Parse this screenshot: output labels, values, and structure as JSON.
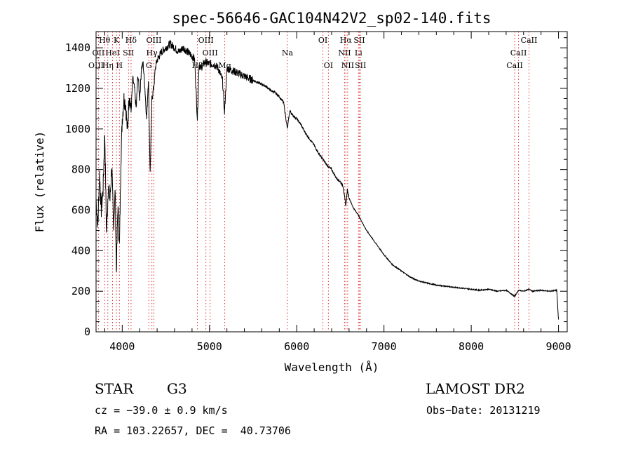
{
  "chart_data": {
    "type": "line",
    "title": "spec-56646-GAC104N42V2_sp02-140.fits",
    "xlabel": "Wavelength (Å)",
    "ylabel": "Flux (relative)",
    "xlim": [
      3700,
      9100
    ],
    "ylim": [
      0,
      1480
    ],
    "xticks": [
      "4000",
      "5000",
      "6000",
      "7000",
      "8000",
      "9000"
    ],
    "yticks": [
      "0",
      "200",
      "400",
      "600",
      "800",
      "1000",
      "1200",
      "1400"
    ],
    "grid": false,
    "series": [
      {
        "x": [
          3700,
          3720,
          3740,
          3760,
          3780,
          3800,
          3820,
          3840,
          3860,
          3880,
          3900,
          3920,
          3933,
          3950,
          3968,
          3985,
          4000,
          4020,
          4040,
          4060,
          4080,
          4101,
          4120,
          4140,
          4160,
          4180,
          4200,
          4220,
          4240,
          4260,
          4280,
          4300,
          4320,
          4340,
          4360,
          4380,
          4400,
          4450,
          4500,
          4550,
          4600,
          4650,
          4700,
          4750,
          4800,
          4830,
          4861,
          4880,
          4900,
          4950,
          5000,
          5050,
          5100,
          5150,
          5172,
          5200,
          5250,
          5300,
          5350,
          5400,
          5450,
          5500,
          5550,
          5600,
          5650,
          5700,
          5750,
          5800,
          5850,
          5893,
          5920,
          5950,
          6000,
          6050,
          6100,
          6150,
          6200,
          6250,
          6300,
          6350,
          6400,
          6450,
          6500,
          6530,
          6563,
          6580,
          6600,
          6650,
          6700,
          6750,
          6800,
          6850,
          6900,
          6950,
          7000,
          7100,
          7200,
          7300,
          7400,
          7500,
          7600,
          7700,
          7800,
          7900,
          8000,
          8100,
          8200,
          8300,
          8400,
          8498,
          8542,
          8600,
          8662,
          8700,
          8800,
          8900,
          8980,
          9000
        ],
        "y": [
          650,
          520,
          780,
          600,
          700,
          980,
          480,
          720,
          650,
          820,
          520,
          700,
          300,
          620,
          420,
          850,
          1050,
          1150,
          1120,
          980,
          1180,
          1080,
          1250,
          1200,
          1100,
          1270,
          1150,
          1300,
          1320,
          1200,
          1050,
          1250,
          780,
          1150,
          1200,
          1300,
          1340,
          1380,
          1400,
          1420,
          1400,
          1380,
          1400,
          1380,
          1360,
          1340,
          1050,
          1320,
          1300,
          1330,
          1320,
          1320,
          1300,
          1240,
          1080,
          1300,
          1290,
          1280,
          1270,
          1260,
          1250,
          1240,
          1230,
          1220,
          1210,
          1190,
          1180,
          1160,
          1130,
          1000,
          1090,
          1070,
          1050,
          1020,
          980,
          950,
          920,
          880,
          850,
          820,
          800,
          760,
          740,
          720,
          620,
          700,
          660,
          610,
          580,
          540,
          500,
          470,
          440,
          410,
          380,
          330,
          300,
          270,
          250,
          240,
          230,
          225,
          220,
          215,
          210,
          205,
          210,
          200,
          205,
          175,
          205,
          200,
          210,
          200,
          205,
          200,
          205,
          60
        ]
      }
    ],
    "line_labels": [
      {
        "label": "Hθ",
        "x": 3798,
        "row": 1
      },
      {
        "label": "K",
        "x": 3934,
        "row": 1
      },
      {
        "label": "Hδ",
        "x": 4101,
        "row": 1
      },
      {
        "label": "OIII",
        "x": 4959,
        "row": 1
      },
      {
        "label": "OI",
        "x": 6300,
        "row": 1
      },
      {
        "label": "Hα",
        "x": 6563,
        "row": 1
      },
      {
        "label": "SII",
        "x": 6717,
        "row": 1
      },
      {
        "label": "CaII",
        "x": 8662,
        "row": 1
      },
      {
        "label": "OII",
        "x": 3727,
        "row": 2
      },
      {
        "label": "HeI",
        "x": 3889,
        "row": 2
      },
      {
        "label": "SII",
        "x": 4072,
        "row": 2
      },
      {
        "label": "Hγ",
        "x": 4340,
        "row": 2
      },
      {
        "label": "OIII",
        "x": 5007,
        "row": 2
      },
      {
        "label": "Na",
        "x": 5893,
        "row": 2
      },
      {
        "label": "NII",
        "x": 6548,
        "row": 2
      },
      {
        "label": "Li",
        "x": 6708,
        "row": 2
      },
      {
        "label": "CaII",
        "x": 8542,
        "row": 2
      },
      {
        "label": "OIII",
        "x": 4363,
        "row": 1
      },
      {
        "label": "OIII",
        "x": 3700,
        "row": 3
      },
      {
        "label": "Hη",
        "x": 3835,
        "row": 3
      },
      {
        "label": "H",
        "x": 3968,
        "row": 3
      },
      {
        "label": "G",
        "x": 4305,
        "row": 3
      },
      {
        "label": "Hβ",
        "x": 4861,
        "row": 3
      },
      {
        "label": "Mg",
        "x": 5175,
        "row": 3
      },
      {
        "label": "OI",
        "x": 6363,
        "row": 3
      },
      {
        "label": "NII",
        "x": 6584,
        "row": 3
      },
      {
        "label": "SII",
        "x": 6731,
        "row": 3
      },
      {
        "label": "CaII",
        "x": 8498,
        "row": 3
      }
    ]
  },
  "info": {
    "object_type": "STAR",
    "subclass": "G3",
    "survey": "LAMOST DR2",
    "cz": "cz = −39.0 ± 0.9 km/s",
    "obs_date": "Obs−Date: 20131219",
    "coords": "RA = 103.22657, DEC =  40.73706"
  }
}
